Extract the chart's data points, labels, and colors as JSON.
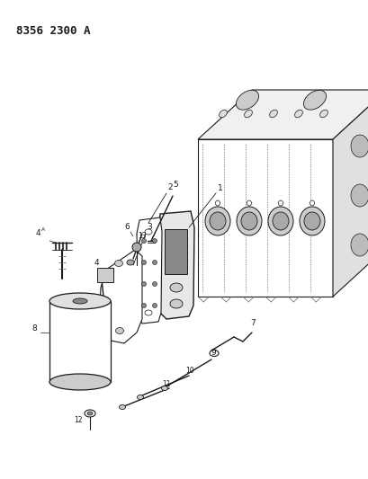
{
  "title": "8356 2300 A",
  "background_color": "#ffffff",
  "line_color": "#1a1a1a",
  "fig_width": 4.1,
  "fig_height": 5.33,
  "dpi": 100
}
